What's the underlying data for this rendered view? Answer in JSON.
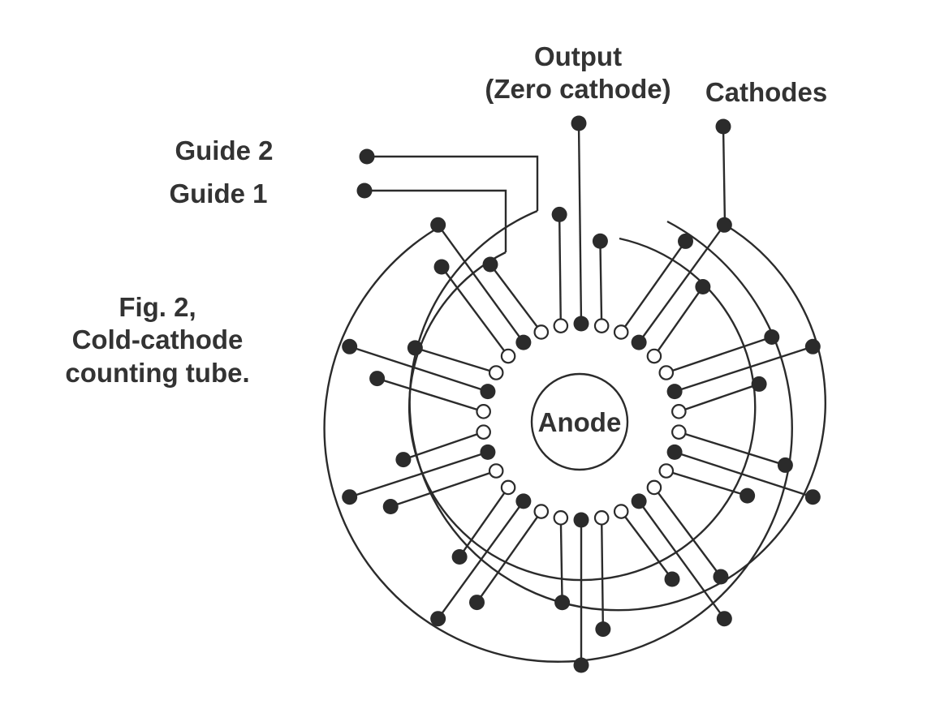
{
  "labels": {
    "output_line1": "Output",
    "output_line2": "(Zero cathode)",
    "cathodes": "Cathodes",
    "guide2": "Guide 2",
    "guide1": "Guide 1",
    "caption_line1": "Fig. 2,",
    "caption_line2": "Cold-cathode",
    "caption_line3": "counting tube.",
    "anode": "Anode"
  },
  "colors": {
    "ink": "#2b2b2b",
    "text": "#333333",
    "background": "#ffffff"
  },
  "structure": {
    "electrode_ring_count": 30,
    "cathode_count": 10,
    "guide_electrode_count": 20,
    "filled_marker": "cathode",
    "hollow_marker": "guide electrode"
  }
}
